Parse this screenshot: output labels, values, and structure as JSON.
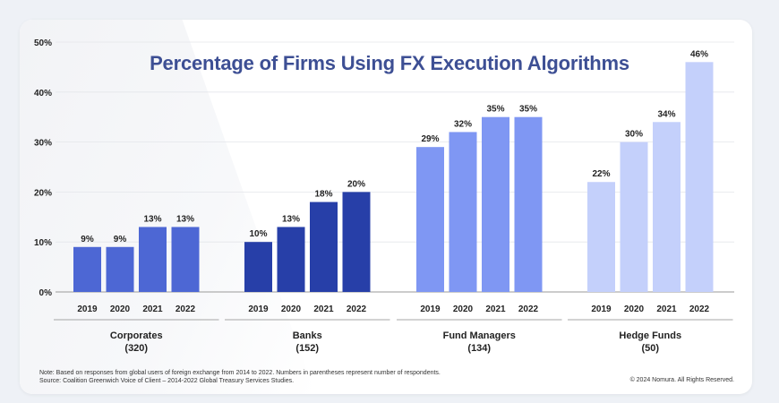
{
  "chart_data": {
    "type": "bar",
    "title": "Percentage of Firms Using FX Execution Algorithms",
    "ylim": [
      0,
      50
    ],
    "yticks": [
      "0%",
      "10%",
      "20%",
      "30%",
      "40%",
      "50%"
    ],
    "ytick_values": [
      0,
      10,
      20,
      30,
      40,
      50
    ],
    "grid": "horizontal",
    "categories": [
      "2019",
      "2020",
      "2021",
      "2022"
    ],
    "groups": [
      {
        "label": "Corporates",
        "respondents": "(320)",
        "color": "#4d67d4",
        "values": [
          9,
          9,
          13,
          13
        ],
        "labels": [
          "9%",
          "9%",
          "13%",
          "13%"
        ]
      },
      {
        "label": "Banks",
        "respondents": "(152)",
        "color": "#273fa8",
        "values": [
          10,
          13,
          18,
          20
        ],
        "labels": [
          "10%",
          "13%",
          "18%",
          "20%"
        ]
      },
      {
        "label": "Fund Managers",
        "respondents": "(134)",
        "color": "#7f97f3",
        "values": [
          29,
          32,
          35,
          35
        ],
        "labels": [
          "29%",
          "32%",
          "35%",
          "35%"
        ]
      },
      {
        "label": "Hedge Funds",
        "respondents": "(50)",
        "color": "#c4d0fb",
        "values": [
          22,
          30,
          34,
          46
        ],
        "labels": [
          "22%",
          "30%",
          "34%",
          "46%"
        ]
      }
    ]
  },
  "footer": {
    "note_line1": "Note: Based on responses from global users of foreign exchange from 2014 to 2022. Numbers in parentheses represent number of respondents.",
    "note_line2": "Source: Coalition Greenwich Voice of Client – 2014-2022 Global Treasury Services Studies.",
    "copyright": "© 2024 Nomura. All Rights Reserved."
  }
}
